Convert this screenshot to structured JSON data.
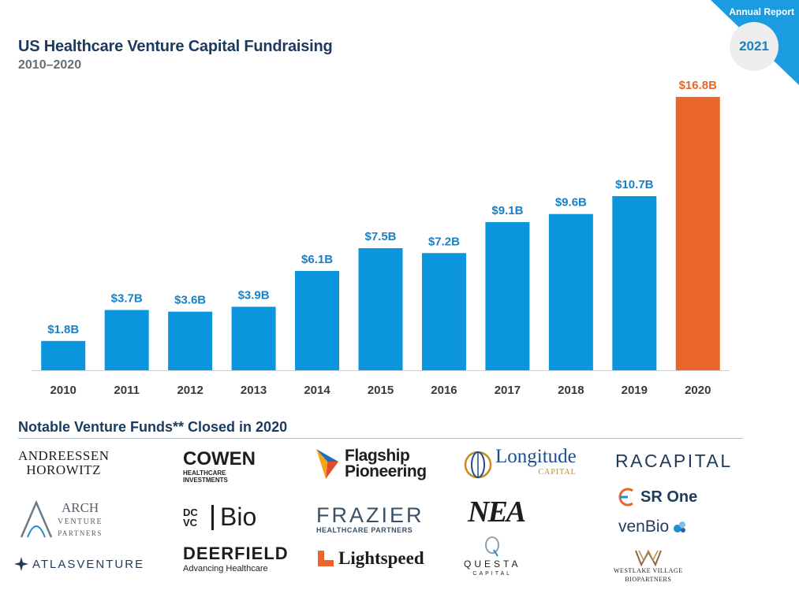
{
  "badge": {
    "label": "Annual Report",
    "year": "2021"
  },
  "chart_data": {
    "type": "bar",
    "title": "US Healthcare Venture Capital Fundraising",
    "subtitle": "2010–2020",
    "categories": [
      "2010",
      "2011",
      "2012",
      "2013",
      "2014",
      "2015",
      "2016",
      "2017",
      "2018",
      "2019",
      "2020"
    ],
    "values": [
      1.8,
      3.7,
      3.6,
      3.9,
      6.1,
      7.5,
      7.2,
      9.1,
      9.6,
      10.7,
      16.8
    ],
    "value_labels": [
      "$1.8B",
      "$3.7B",
      "$3.6B",
      "$3.9B",
      "$6.1B",
      "$7.5B",
      "$7.2B",
      "$9.1B",
      "$9.6B",
      "$10.7B",
      "$16.8B"
    ],
    "highlight_index": 10,
    "colors": {
      "bar": "#0a95dd",
      "highlight": "#e8662a",
      "label": "#1b7fc4",
      "highlight_label": "#e8662a"
    },
    "xlabel": "",
    "ylabel": "",
    "ylim": [
      0,
      16.8
    ],
    "grid": false,
    "legend": "none"
  },
  "funds": {
    "heading": "Notable Venture Funds** Closed in 2020",
    "logos": [
      {
        "name": "ANDREESSEN HOROWITZ",
        "line1": "ANDREESSEN",
        "line2": "HOROWITZ"
      },
      {
        "name": "COWEN",
        "line1": "COWEN",
        "line2": "HEALTHCARE",
        "line3": "INVESTMENTS"
      },
      {
        "name": "Flagship Pioneering",
        "line1": "Flagship",
        "line2": "Pioneering"
      },
      {
        "name": "Longitude Capital",
        "line1": "Longitude",
        "line2": "CAPITAL"
      },
      {
        "name": "RA CAPITAL",
        "line1": "RACAPITAL"
      },
      {
        "name": "ARCH Venture Partners",
        "line1": "ARCH",
        "line2": "VENTURE",
        "line3": "PARTNERS"
      },
      {
        "name": "DCVC Bio",
        "mark": "DC VC",
        "line1": "Bio"
      },
      {
        "name": "FRAZIER Healthcare Partners",
        "line1": "FRAZIER",
        "line2": "HEALTHCARE PARTNERS"
      },
      {
        "name": "NEA",
        "line1": "NEA"
      },
      {
        "name": "SR One",
        "line1": "SR One"
      },
      {
        "name": "venBio",
        "line1": "venBio"
      },
      {
        "name": "ATLAS VENTURE",
        "line1": "ATLASVENTURE"
      },
      {
        "name": "DEERFIELD",
        "line1": "DEERFIELD",
        "line2": "Advancing Healthcare"
      },
      {
        "name": "Lightspeed",
        "line1": "Lightspeed"
      },
      {
        "name": "QUESTA CAPITAL",
        "line1": "QUESTA",
        "line2": "CAPITAL"
      },
      {
        "name": "Westlake Village BioPartners",
        "line1": "WESTLAKE VILLAGE",
        "line2": "BIOPARTNERS"
      }
    ]
  }
}
